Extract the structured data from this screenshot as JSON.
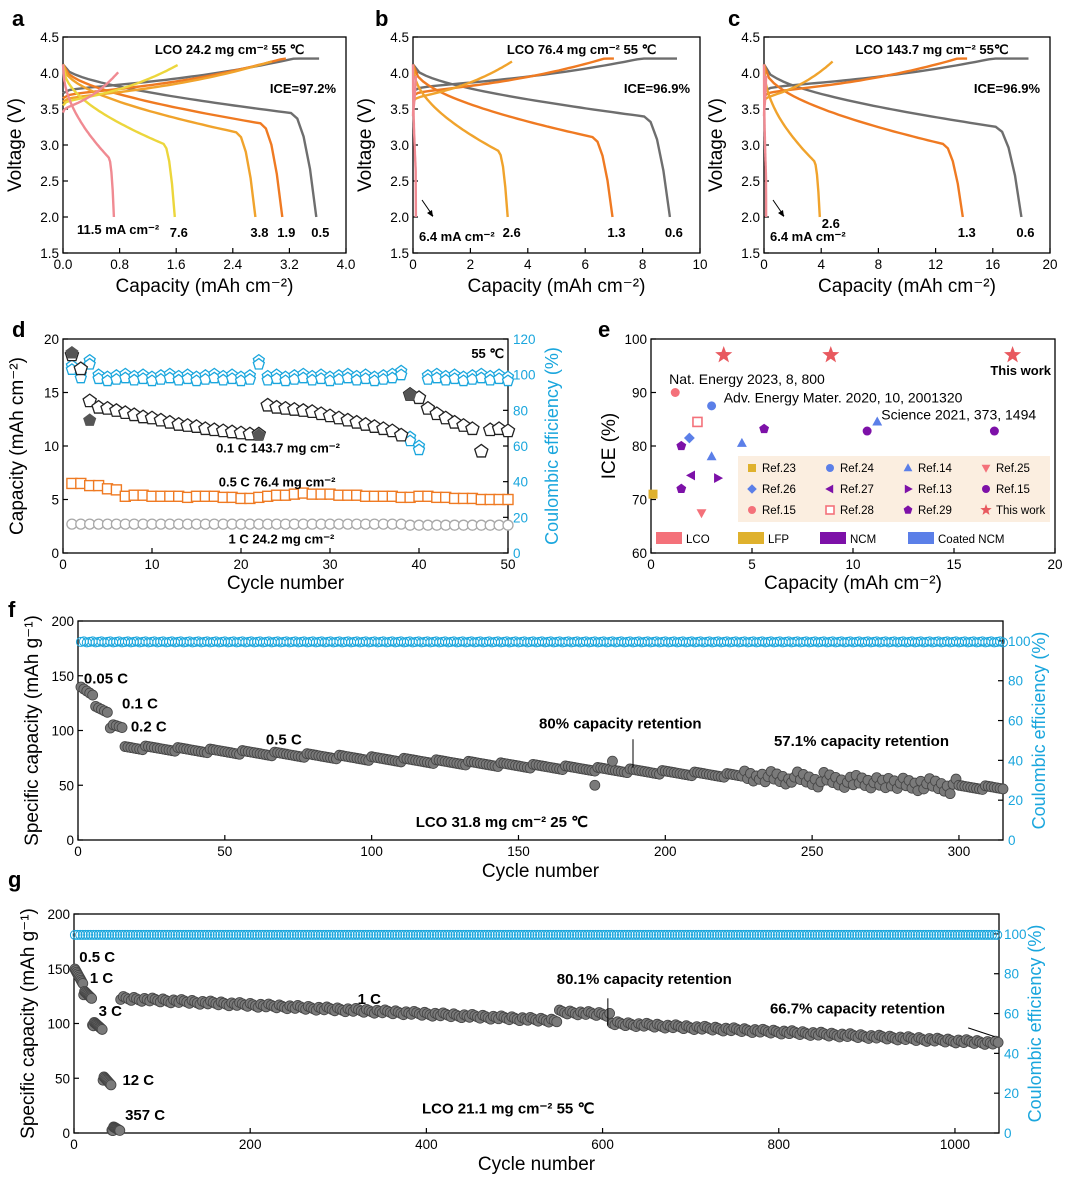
{
  "colors": {
    "ce_blue": "#1aa6dd",
    "grey": "#6e6e6e",
    "orange": "#ef7a22",
    "gold": "#f0a32c",
    "yellow": "#ecd63c",
    "pink": "#f08a92",
    "legend_bg": "#fbeee0",
    "lco": "#f4717a",
    "lfp": "#dfb12d",
    "ncm": "#7d11a8",
    "coated_ncm": "#5b7fe8",
    "this_work": "#e8595f"
  },
  "chart_data": [
    {
      "id": "a",
      "type": "line",
      "panel_letter": "a",
      "title": "LCO 24.2 mg cm⁻²  55 ℃",
      "ice_label": "ICE=97.2%",
      "xlabel": "Capacity (mAh cm⁻²)",
      "ylabel": "Voltage (V)",
      "xlim": [
        0,
        4.0
      ],
      "ylim": [
        1.5,
        4.5
      ],
      "xticks": [
        "0.0",
        "0.8",
        "1.6",
        "2.4",
        "3.2",
        "4.0"
      ],
      "xtick_values": [
        0,
        0.8,
        1.6,
        2.4,
        3.2,
        4.0
      ],
      "yticks": [
        "1.5",
        "2.0",
        "2.5",
        "3.0",
        "3.5",
        "4.0",
        "4.5"
      ],
      "ytick_values": [
        1.5,
        2.0,
        2.5,
        3.0,
        3.5,
        4.0,
        4.5
      ],
      "curves": [
        {
          "current": "0.5",
          "color": "#6e6e6e",
          "charge_cap": 3.62,
          "discharge_cap": 3.58,
          "charge_start": 3.72,
          "plateau": 3.4
        },
        {
          "current": "1.9",
          "color": "#ef7a22",
          "charge_cap": 3.15,
          "discharge_cap": 3.1,
          "charge_start": 3.65,
          "plateau": 3.25
        },
        {
          "current": "3.8",
          "color": "#f0a32c",
          "charge_cap": 2.95,
          "discharge_cap": 2.72,
          "charge_start": 3.6,
          "plateau": 3.12
        },
        {
          "current": "7.6",
          "color": "#ecd63c",
          "charge_cap": 1.62,
          "discharge_cap": 1.58,
          "charge_start": 3.55,
          "plateau": 2.95
        },
        {
          "current": "11.5",
          "color": "#f08a92",
          "charge_cap": 0.78,
          "discharge_cap": 0.72,
          "charge_start": 3.45,
          "plateau": 2.75
        }
      ],
      "current_labels": [
        "11.5 mA cm⁻²",
        "7.6",
        "3.8",
        "1.9",
        "0.5"
      ]
    },
    {
      "id": "b",
      "type": "line",
      "panel_letter": "b",
      "title": "LCO 76.4 mg cm⁻²  55 ℃",
      "ice_label": "ICE=96.9%",
      "xlabel": "Capacity (mAh cm⁻²)",
      "ylabel": "Voltage (V)",
      "xlim": [
        0,
        10
      ],
      "ylim": [
        1.5,
        4.5
      ],
      "xticks": [
        "0",
        "2",
        "4",
        "6",
        "8",
        "10"
      ],
      "xtick_values": [
        0,
        2,
        4,
        6,
        8,
        10
      ],
      "yticks": [
        "1.5",
        "2.0",
        "2.5",
        "3.0",
        "3.5",
        "4.0",
        "4.5"
      ],
      "ytick_values": [
        1.5,
        2.0,
        2.5,
        3.0,
        3.5,
        4.0,
        4.5
      ],
      "curves": [
        {
          "current": "0.6",
          "color": "#6e6e6e",
          "charge_cap": 9.2,
          "discharge_cap": 8.95,
          "charge_start": 3.75,
          "plateau": 3.35
        },
        {
          "current": "1.3",
          "color": "#ef7a22",
          "charge_cap": 7.0,
          "discharge_cap": 6.95,
          "charge_start": 3.68,
          "plateau": 3.05
        },
        {
          "current": "2.6",
          "color": "#f0a32c",
          "charge_cap": 3.45,
          "discharge_cap": 3.3,
          "charge_start": 3.6,
          "plateau": 2.85
        },
        {
          "current": "6.4",
          "color": "#f08a92",
          "charge_cap": 0.1,
          "discharge_cap": 0.1,
          "charge_start": 3.4,
          "plateau": 2.6
        }
      ],
      "current_labels": [
        "6.4 mA cm⁻²",
        "2.6",
        "1.3",
        "0.6"
      ]
    },
    {
      "id": "c",
      "type": "line",
      "panel_letter": "c",
      "title": "LCO 143.7 mg cm⁻²  55℃",
      "ice_label": "ICE=96.9%",
      "xlabel": "Capacity (mAh cm⁻²)",
      "ylabel": "Voltage (V)",
      "xlim": [
        0,
        20
      ],
      "ylim": [
        1.5,
        4.5
      ],
      "xticks": [
        "0",
        "4",
        "8",
        "12",
        "16",
        "20"
      ],
      "xtick_values": [
        0,
        4,
        8,
        12,
        16,
        20
      ],
      "yticks": [
        "1.5",
        "2.0",
        "2.5",
        "3.0",
        "3.5",
        "4.0",
        "4.5"
      ],
      "ytick_values": [
        1.5,
        2.0,
        2.5,
        3.0,
        3.5,
        4.0,
        4.5
      ],
      "curves": [
        {
          "current": "0.6",
          "color": "#6e6e6e",
          "charge_cap": 18.5,
          "discharge_cap": 18.0,
          "charge_start": 3.75,
          "plateau": 3.2
        },
        {
          "current": "1.3",
          "color": "#ef7a22",
          "charge_cap": 14.2,
          "discharge_cap": 13.9,
          "charge_start": 3.68,
          "plateau": 2.95
        },
        {
          "current": "2.6",
          "color": "#f0a32c",
          "charge_cap": 4.8,
          "discharge_cap": 3.9,
          "charge_start": 3.6,
          "plateau": 2.7
        },
        {
          "current": "6.4",
          "color": "#f08a92",
          "charge_cap": 0.15,
          "discharge_cap": 0.15,
          "charge_start": 3.4,
          "plateau": 2.5
        }
      ],
      "current_labels": [
        "6.4 mA cm⁻²",
        "2.6",
        "1.3",
        "0.6"
      ]
    },
    {
      "id": "d",
      "type": "scatter",
      "panel_letter": "d",
      "xlabel": "Cycle number",
      "ylabel": "Capacity (mAh cm⁻²)",
      "y2label": "Coulombic efficiency (%)",
      "xlim": [
        0,
        50
      ],
      "ylim": [
        0,
        20
      ],
      "y2lim": [
        0,
        120
      ],
      "xticks": [
        "0",
        "10",
        "20",
        "30",
        "40",
        "50"
      ],
      "xtick_values": [
        0,
        10,
        20,
        30,
        40,
        50
      ],
      "yticks": [
        "0",
        "5",
        "10",
        "15",
        "20"
      ],
      "ytick_values": [
        0,
        5,
        10,
        15,
        20
      ],
      "y2ticks": [
        "0",
        "20",
        "40",
        "60",
        "80",
        "100",
        "120"
      ],
      "y2tick_values": [
        0,
        20,
        40,
        60,
        80,
        100,
        120
      ],
      "temp_label": "55 ℃",
      "series": [
        {
          "name": "0.1 C  143.7 mg cm⁻²",
          "color": "#6e6e6e",
          "values": [
            18.5,
            17.2,
            14.2,
            13.6,
            13.5,
            13.3,
            13.1,
            12.9,
            12.7,
            12.6,
            12.4,
            12.2,
            12.0,
            11.9,
            11.8,
            11.6,
            11.5,
            11.4,
            11.3,
            11.2,
            11.1,
            11.1,
            13.8,
            13.6,
            13.5,
            13.4,
            13.3,
            13.2,
            13.0,
            12.8,
            12.6,
            12.4,
            12.2,
            12.0,
            11.8,
            11.6,
            11.4,
            11.0,
            14.8,
            14.5,
            13.5,
            13.0,
            12.6,
            12.2,
            11.9,
            11.6,
            9.5,
            11.5,
            11.6,
            11.4
          ]
        },
        {
          "name": "0.5 C  76.4 mg cm⁻²",
          "color": "#ef7a22",
          "values": [
            6.5,
            6.5,
            6.3,
            6.3,
            6.0,
            5.9,
            5.3,
            5.4,
            5.4,
            5.3,
            5.3,
            5.3,
            5.3,
            5.2,
            5.3,
            5.3,
            5.3,
            5.2,
            5.2,
            5.1,
            5.1,
            5.2,
            5.3,
            5.4,
            5.4,
            5.5,
            5.6,
            5.5,
            5.5,
            5.5,
            5.4,
            5.4,
            5.4,
            5.3,
            5.3,
            5.3,
            5.3,
            5.2,
            5.2,
            5.3,
            5.3,
            5.2,
            5.2,
            5.1,
            5.1,
            5.1,
            5.0,
            5.0,
            5.0,
            5.0
          ]
        },
        {
          "name": "1 C  24.2 mg cm⁻²",
          "color": "#a8a8a8",
          "values": [
            2.7,
            2.7,
            2.7,
            2.7,
            2.7,
            2.7,
            2.7,
            2.7,
            2.7,
            2.7,
            2.7,
            2.7,
            2.7,
            2.7,
            2.7,
            2.7,
            2.7,
            2.7,
            2.7,
            2.7,
            2.7,
            2.7,
            2.7,
            2.7,
            2.7,
            2.7,
            2.7,
            2.7,
            2.7,
            2.7,
            2.7,
            2.7,
            2.7,
            2.7,
            2.7,
            2.7,
            2.7,
            2.7,
            2.6,
            2.6,
            2.6,
            2.6,
            2.6,
            2.6,
            2.6,
            2.6,
            2.6,
            2.6,
            2.6,
            2.6
          ]
        }
      ],
      "ce_series": {
        "color": "#1aa6dd",
        "baseline": 99.5,
        "spikes": [
          [
            1,
            105
          ],
          [
            3,
            108
          ],
          [
            22,
            108
          ],
          [
            38,
            102
          ],
          [
            39,
            65
          ],
          [
            40,
            60
          ]
        ]
      }
    },
    {
      "id": "e",
      "type": "scatter",
      "panel_letter": "e",
      "xlabel": "Capacity (mAh cm⁻²)",
      "ylabel": "ICE (%)",
      "xlim": [
        0,
        20
      ],
      "ylim": [
        60,
        100
      ],
      "xticks": [
        "0",
        "5",
        "10",
        "15",
        "20"
      ],
      "xtick_values": [
        0,
        5,
        10,
        15,
        20
      ],
      "yticks": [
        "60",
        "70",
        "80",
        "90",
        "100"
      ],
      "ytick_values": [
        60,
        70,
        80,
        90,
        100
      ],
      "this_work_label": "This work",
      "citations": [
        "Nat. Energy 2023, 8, 800",
        "Adv. Energy Mater. 2020, 10, 2001320",
        "Science 2021, 373, 1494"
      ],
      "points": [
        {
          "ref": "Ref.23",
          "marker": "square",
          "color": "#dfb12d",
          "x": 0.1,
          "y": 71
        },
        {
          "ref": "Ref.24",
          "marker": "circle",
          "color": "#5b7fe8",
          "x": 3.0,
          "y": 87.5
        },
        {
          "ref": "Ref.14",
          "marker": "tri-up",
          "color": "#5b7fe8",
          "x": 3.0,
          "y": 78
        },
        {
          "ref": "Ref.14",
          "marker": "tri-up",
          "color": "#5b7fe8",
          "x": 4.5,
          "y": 80.5
        },
        {
          "ref": "Ref.14",
          "marker": "tri-up",
          "color": "#5b7fe8",
          "x": 11.2,
          "y": 84.5
        },
        {
          "ref": "Ref.25",
          "marker": "tri-down",
          "color": "#f4717a",
          "x": 2.5,
          "y": 67.5
        },
        {
          "ref": "Ref.26",
          "marker": "diamond",
          "color": "#5b7fe8",
          "x": 1.9,
          "y": 81.5
        },
        {
          "ref": "Ref.27",
          "marker": "tri-left",
          "color": "#7d11a8",
          "x": 2.0,
          "y": 74.5
        },
        {
          "ref": "Ref.13",
          "marker": "tri-right",
          "color": "#7d11a8",
          "x": 3.3,
          "y": 74
        },
        {
          "ref": "Ref.15",
          "marker": "circle",
          "color": "#7d11a8",
          "x": 10.7,
          "y": 82.8
        },
        {
          "ref": "Ref.15",
          "marker": "circle",
          "color": "#7d11a8",
          "x": 17.0,
          "y": 82.8
        },
        {
          "ref": "Ref.15",
          "marker": "circle",
          "color": "#f4717a",
          "x": 1.2,
          "y": 90
        },
        {
          "ref": "Ref.28",
          "marker": "square-open",
          "color": "#f4717a",
          "x": 2.3,
          "y": 84.5
        },
        {
          "ref": "Ref.29",
          "marker": "pentagon",
          "color": "#7d11a8",
          "x": 1.5,
          "y": 80
        },
        {
          "ref": "Ref.29",
          "marker": "pentagon",
          "color": "#7d11a8",
          "x": 1.5,
          "y": 72
        },
        {
          "ref": "Ref.29",
          "marker": "pentagon",
          "color": "#7d11a8",
          "x": 5.6,
          "y": 83.2
        },
        {
          "ref": "This work",
          "marker": "star",
          "color": "#e8595f",
          "x": 3.6,
          "y": 97
        },
        {
          "ref": "This work",
          "marker": "star",
          "color": "#e8595f",
          "x": 8.9,
          "y": 97
        },
        {
          "ref": "This work",
          "marker": "star",
          "color": "#e8595f",
          "x": 17.9,
          "y": 97
        }
      ],
      "legend": [
        {
          "label": "Ref.23",
          "marker": "square",
          "color": "#dfb12d"
        },
        {
          "label": "Ref.24",
          "marker": "circle",
          "color": "#5b7fe8"
        },
        {
          "label": "Ref.14",
          "marker": "tri-up",
          "color": "#5b7fe8"
        },
        {
          "label": "Ref.25",
          "marker": "tri-down",
          "color": "#f4717a"
        },
        {
          "label": "Ref.26",
          "marker": "diamond",
          "color": "#5b7fe8"
        },
        {
          "label": "Ref.27",
          "marker": "tri-left",
          "color": "#7d11a8"
        },
        {
          "label": "Ref.13",
          "marker": "tri-right",
          "color": "#7d11a8"
        },
        {
          "label": "Ref.15",
          "marker": "circle",
          "color": "#7d11a8"
        },
        {
          "label": "Ref.15",
          "marker": "circle",
          "color": "#f4717a"
        },
        {
          "label": "Ref.28",
          "marker": "square-open",
          "color": "#f4717a"
        },
        {
          "label": "Ref.29",
          "marker": "pentagon",
          "color": "#7d11a8"
        },
        {
          "label": "This work",
          "marker": "star",
          "color": "#e8595f"
        }
      ],
      "categories": [
        {
          "label": "LCO",
          "color": "#f4717a"
        },
        {
          "label": "LFP",
          "color": "#dfb12d"
        },
        {
          "label": "NCM",
          "color": "#7d11a8"
        },
        {
          "label": "Coated NCM",
          "color": "#5b7fe8"
        }
      ]
    },
    {
      "id": "f",
      "type": "scatter",
      "panel_letter": "f",
      "xlabel": "Cycle number",
      "ylabel": "Specific capacity (mAh g⁻¹)",
      "y2label": "Coulombic efficiency (%)",
      "xlim": [
        0,
        315
      ],
      "ylim": [
        0,
        200
      ],
      "y2lim": [
        0,
        110
      ],
      "xticks": [
        "0",
        "50",
        "100",
        "150",
        "200",
        "250",
        "300"
      ],
      "xtick_values": [
        0,
        50,
        100,
        150,
        200,
        250,
        300
      ],
      "yticks": [
        "0",
        "50",
        "100",
        "150",
        "200"
      ],
      "ytick_values": [
        0,
        50,
        100,
        150,
        200
      ],
      "y2ticks": [
        "0",
        "20",
        "40",
        "60",
        "80",
        "100"
      ],
      "y2tick_values": [
        0,
        20,
        40,
        60,
        80,
        100
      ],
      "rate_labels": [
        "0.05 C",
        "0.1 C",
        "0.2 C",
        "0.5 C"
      ],
      "retention_80": "80% capacity retention",
      "retention_end": "57.1% capacity retention",
      "condition": "LCO 31.8 mg cm⁻²  25 ℃",
      "segments": [
        {
          "from": 1,
          "to": 5,
          "start": 138,
          "end": 132
        },
        {
          "from": 6,
          "to": 10,
          "start": 122,
          "end": 118
        },
        {
          "from": 11,
          "to": 15,
          "start": 104,
          "end": 102
        },
        {
          "from": 16,
          "to": 315,
          "start": 85,
          "end": 47
        }
      ],
      "outliers": [
        [
          176,
          50
        ],
        [
          182,
          72
        ]
      ],
      "ce_value": 99.5
    },
    {
      "id": "g",
      "type": "scatter",
      "panel_letter": "g",
      "xlabel": "Cycle number",
      "ylabel": "Specific capacity (mAh g⁻¹)",
      "y2label": "Coulombic efficiency (%)",
      "xlim": [
        0,
        1050
      ],
      "ylim": [
        0,
        200
      ],
      "y2lim": [
        0,
        110
      ],
      "xticks": [
        "0",
        "200",
        "400",
        "600",
        "800",
        "1000"
      ],
      "xtick_values": [
        0,
        200,
        400,
        600,
        800,
        1000
      ],
      "yticks": [
        "0",
        "50",
        "100",
        "150",
        "200"
      ],
      "ytick_values": [
        0,
        50,
        100,
        150,
        200
      ],
      "y2ticks": [
        "0",
        "20",
        "40",
        "60",
        "80",
        "100"
      ],
      "y2tick_values": [
        0,
        20,
        40,
        60,
        80,
        100
      ],
      "rate_labels": [
        "0.5 C",
        "1 C",
        "3 C",
        "12 C",
        "357 C",
        "1 C"
      ],
      "retention_80": "80.1% capacity retention",
      "retention_end": "66.7% capacity retention",
      "condition": "LCO 21.1 mg cm⁻²  55 ℃",
      "segments": [
        {
          "from": 1,
          "to": 10,
          "start": 148,
          "end": 138
        },
        {
          "from": 11,
          "to": 20,
          "start": 128,
          "end": 124
        },
        {
          "from": 21,
          "to": 32,
          "start": 100,
          "end": 96
        },
        {
          "from": 33,
          "to": 42,
          "start": 50,
          "end": 45
        },
        {
          "from": 43,
          "to": 52,
          "start": 4,
          "end": 3
        },
        {
          "from": 53,
          "to": 1050,
          "start": 123,
          "end": 82
        }
      ],
      "ce_value": 99.5
    }
  ]
}
